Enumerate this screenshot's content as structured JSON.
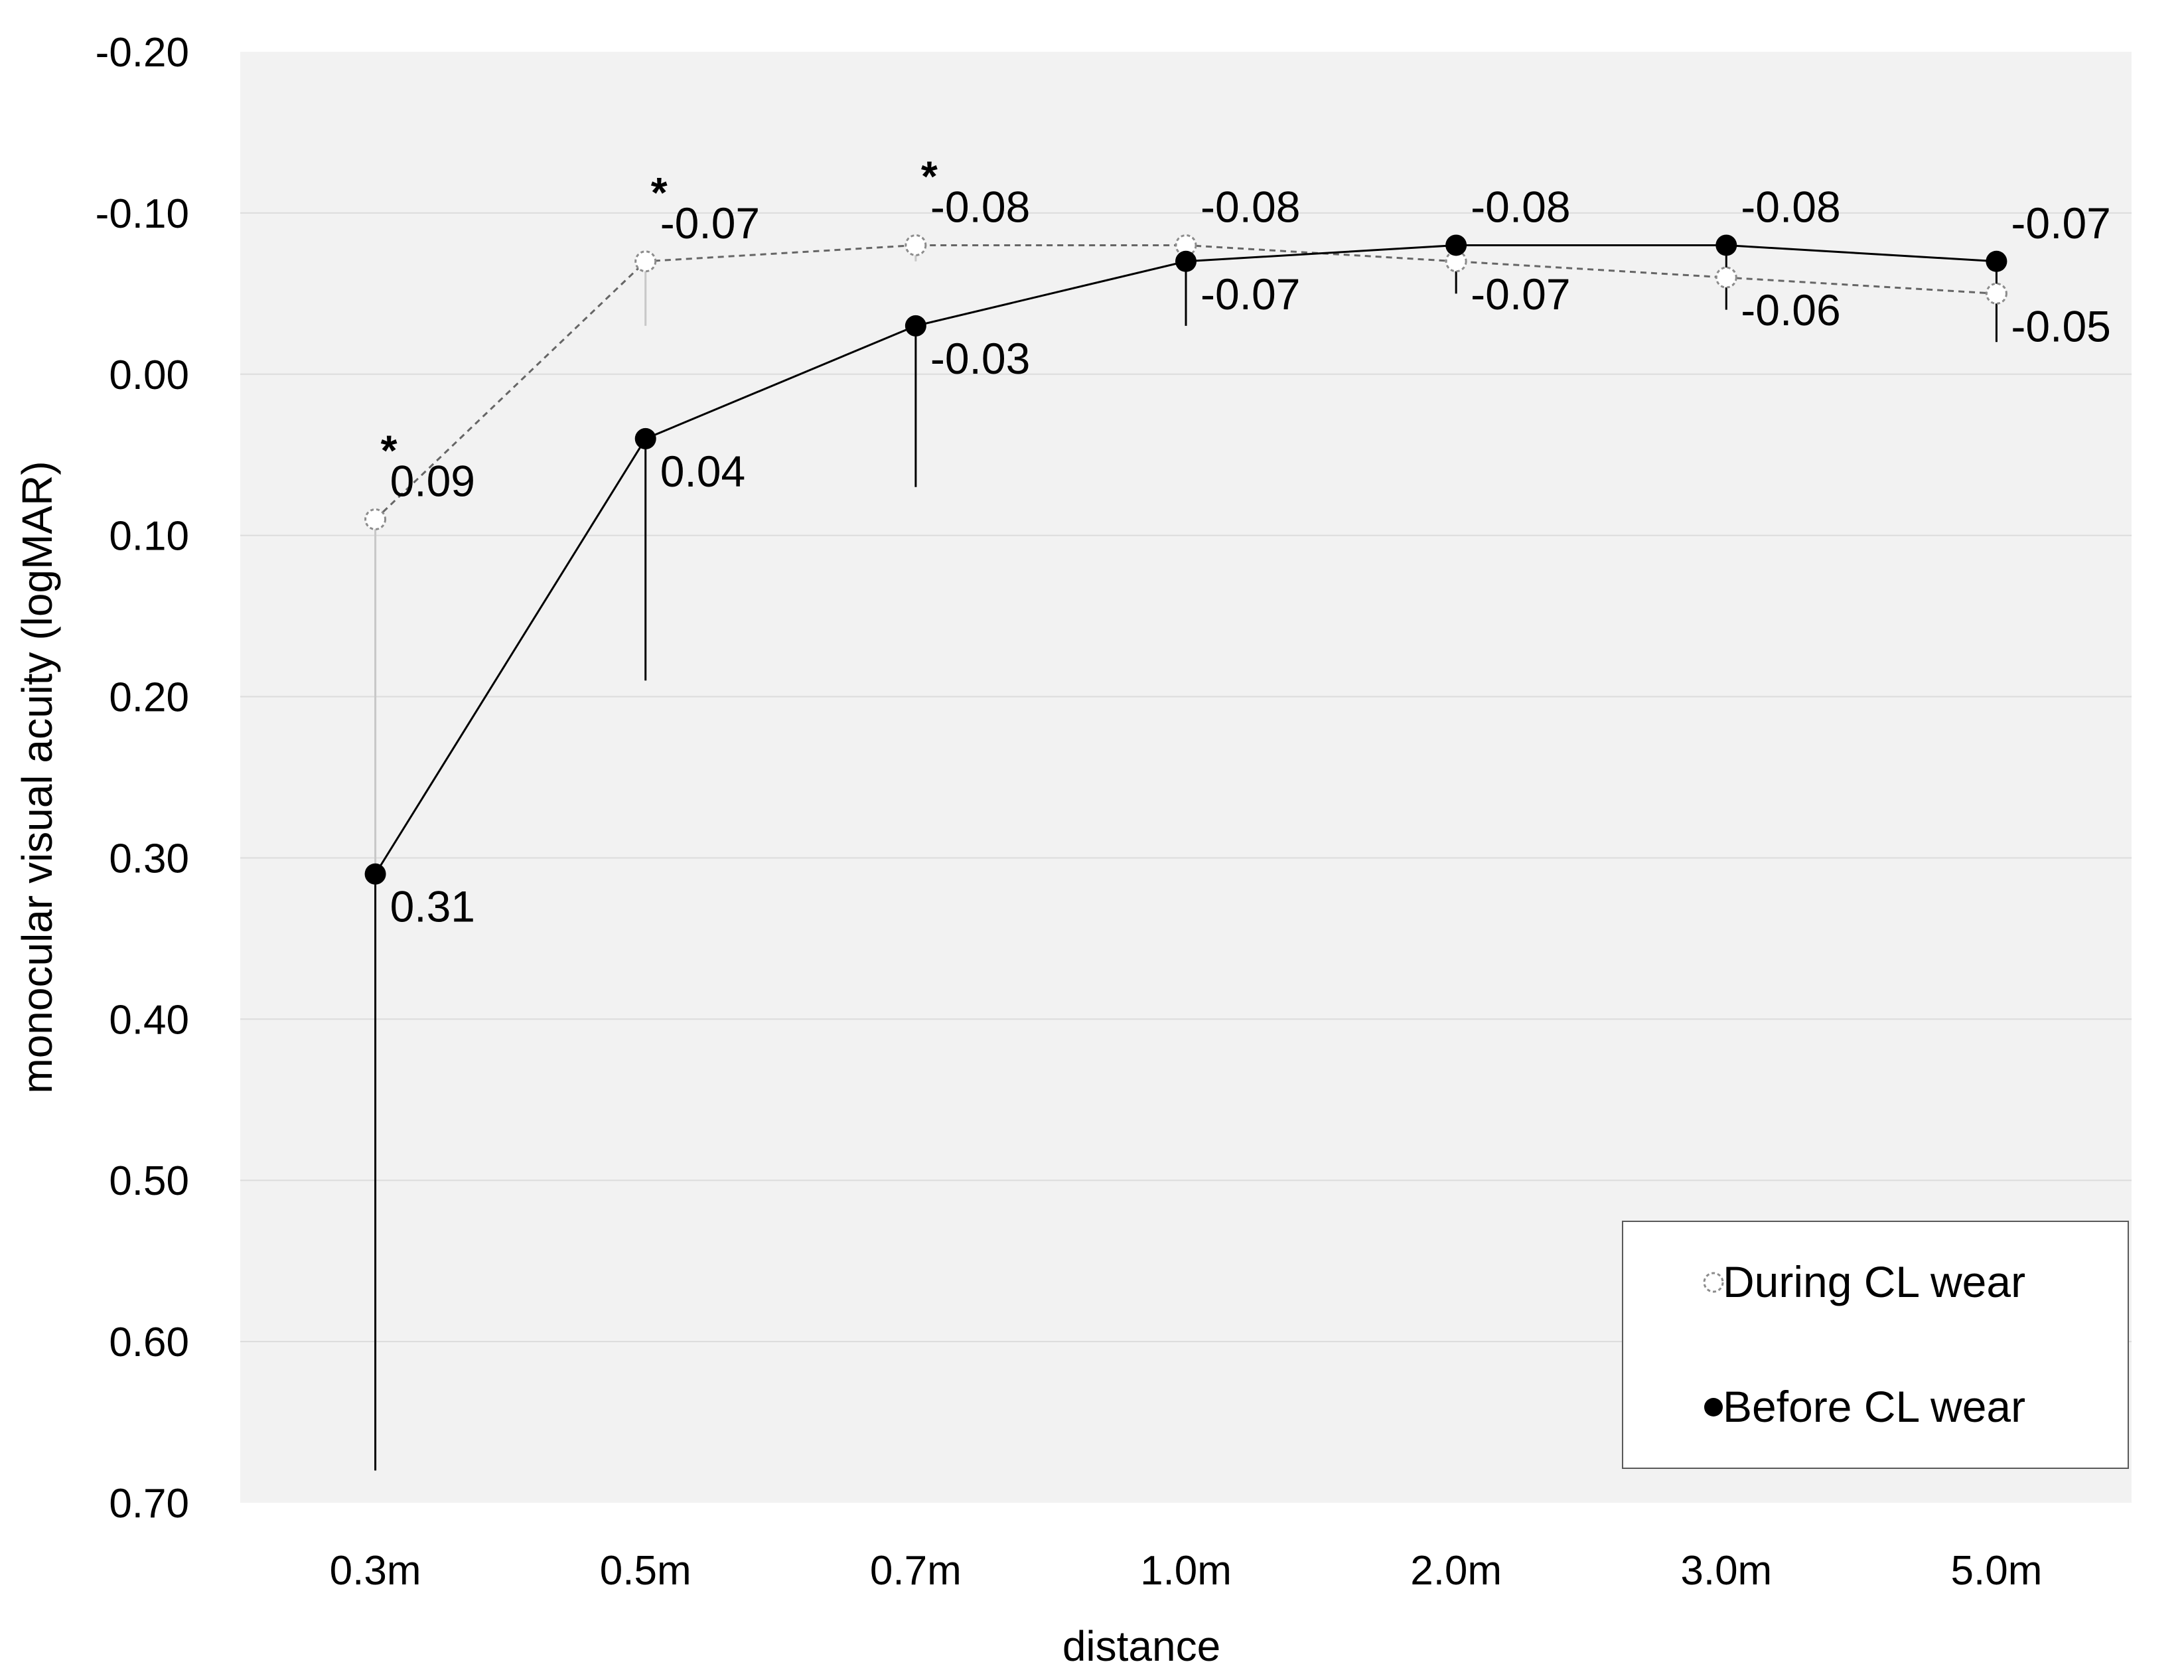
{
  "chart_data": {
    "type": "line",
    "xlabel": "distance",
    "ylabel": "monocular visual acuity (logMAR)",
    "categories": [
      "0.3m",
      "0.5m",
      "0.7m",
      "1.0m",
      "2.0m",
      "3.0m",
      "5.0m"
    ],
    "ylim": [
      -0.2,
      0.7
    ],
    "y_inverted": true,
    "y_ticks": [
      "-0.20",
      "-0.10",
      "0.00",
      "0.10",
      "0.20",
      "0.30",
      "0.40",
      "0.50",
      "0.60",
      "0.70"
    ],
    "grid": true,
    "legend_position": "bottom-right",
    "series": [
      {
        "name": "During CL wear",
        "marker": "open-circle",
        "line_style": "dashed",
        "color": "#555555",
        "values": [
          0.09,
          -0.07,
          -0.08,
          -0.08,
          -0.07,
          -0.06,
          -0.05
        ],
        "labels": [
          "0.09",
          "-0.07",
          "-0.08",
          "-0.08",
          "-0.07",
          "-0.06",
          "-0.05"
        ],
        "error_high": [
          0.22,
          0.04,
          0.01,
          0.02,
          0.0,
          0.0,
          0.0
        ],
        "error_low": [
          0.0,
          0.0,
          0.0,
          0.0,
          0.0,
          0.0,
          0.0
        ]
      },
      {
        "name": "Before CL wear",
        "marker": "filled-circle",
        "line_style": "solid",
        "color": "#000000",
        "values": [
          0.31,
          0.04,
          -0.03,
          -0.07,
          -0.08,
          -0.08,
          -0.07
        ],
        "labels": [
          "0.31",
          "0.04",
          "-0.03",
          "-0.07",
          "-0.08",
          "-0.08",
          "-0.07"
        ],
        "error_high": [
          0.37,
          0.15,
          0.1,
          0.04,
          0.03,
          0.04,
          0.05
        ],
        "error_low": [
          0.0,
          0.0,
          0.0,
          0.0,
          0.0,
          0.0,
          0.0
        ]
      }
    ],
    "annotations": [
      {
        "text": "*",
        "category": "0.3m"
      },
      {
        "text": "*",
        "category": "0.5m"
      },
      {
        "text": "*",
        "category": "0.7m"
      }
    ]
  }
}
